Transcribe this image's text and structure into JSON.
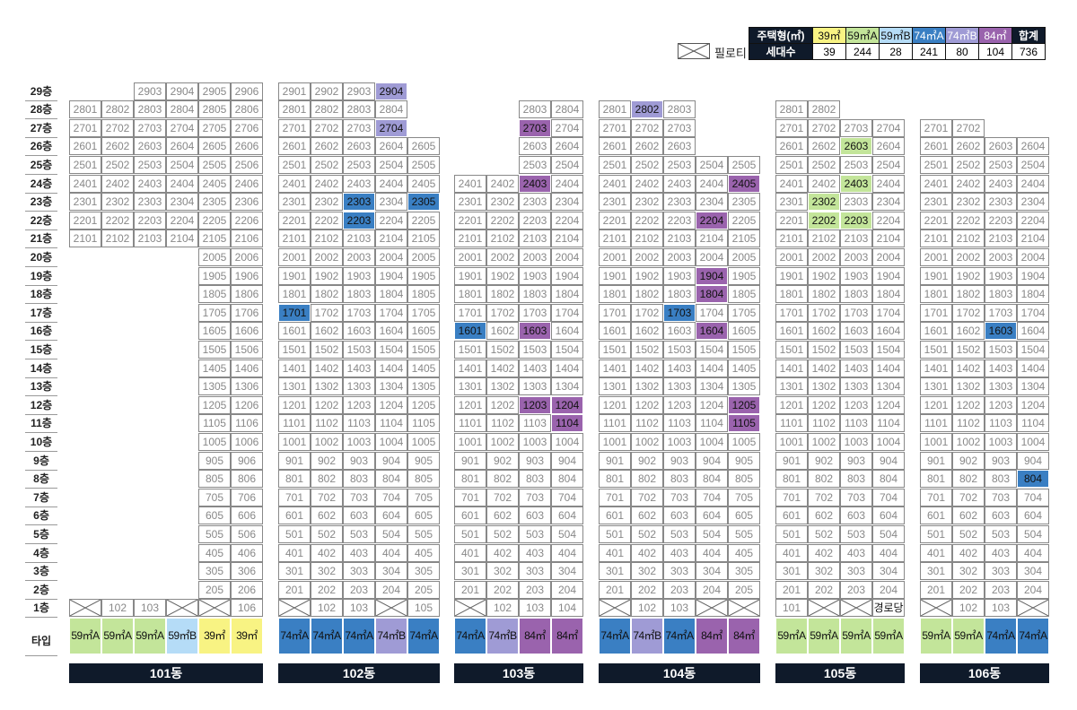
{
  "legend": {
    "header_type": "주택형(㎡)",
    "header_count": "세대수",
    "types": [
      {
        "label": "39㎡",
        "count": "39",
        "color": "#f8f383",
        "dark_text": true
      },
      {
        "label": "59㎡A",
        "count": "244",
        "color": "#c3e59a",
        "dark_text": true
      },
      {
        "label": "59㎡B",
        "count": "28",
        "color": "#b5dcf7",
        "dark_text": true
      },
      {
        "label": "74㎡A",
        "count": "241",
        "color": "#3a7fc3",
        "dark_text": false
      },
      {
        "label": "74㎡B",
        "count": "80",
        "color": "#9f9bd5",
        "dark_text": false
      },
      {
        "label": "84㎡",
        "count": "104",
        "color": "#9a63ad",
        "dark_text": false
      }
    ],
    "total_label": "합계",
    "total_count": "736",
    "piloti_label": "필로티"
  },
  "floor_labels": [
    "29층",
    "28층",
    "27층",
    "26층",
    "25층",
    "24층",
    "23층",
    "22층",
    "21층",
    "20층",
    "19층",
    "18층",
    "17층",
    "16층",
    "15층",
    "14층",
    "13층",
    "12층",
    "11층",
    "10층",
    "9층",
    "8층",
    "7층",
    "6층",
    "5층",
    "4층",
    "3층",
    "2층",
    "1층"
  ],
  "type_row_label": "타입",
  "buildings": [
    {
      "name": "101동",
      "col_count": 6,
      "floor_ranges": [
        [
          3,
          29,
          29
        ],
        [
          1,
          28,
          21
        ],
        [
          5,
          20,
          2
        ]
      ],
      "ground_floor": [
        "P",
        "102",
        "103",
        "P",
        "P",
        "106"
      ],
      "highlights": {},
      "unit_types": [
        "59㎡A",
        "59㎡A",
        "59㎡A",
        "59㎡B",
        "39㎡",
        "39㎡"
      ]
    },
    {
      "name": "102동",
      "col_count": 5,
      "floor_ranges": [
        [
          1,
          29,
          2
        ]
      ],
      "skip": [
        "2905",
        "2805",
        "2705"
      ],
      "ground_floor": [
        "P",
        "102",
        "103",
        "P",
        "105"
      ],
      "highlights": {
        "2904": "74㎡B",
        "2704": "74㎡B",
        "2303": "74㎡A",
        "2305": "74㎡A",
        "2203": "74㎡A",
        "1701": "74㎡A"
      },
      "unit_types": [
        "74㎡A",
        "74㎡A",
        "74㎡A",
        "74㎡B",
        "74㎡A"
      ]
    },
    {
      "name": "103동",
      "col_count": 4,
      "floor_ranges": [
        [
          3,
          28,
          25
        ],
        [
          1,
          24,
          2
        ]
      ],
      "ground_floor": [
        "P",
        "102",
        "103",
        "104"
      ],
      "highlights": {
        "2703": "84㎡",
        "2403": "84㎡",
        "1601": "74㎡A",
        "1603": "84㎡",
        "1203": "84㎡",
        "1204": "84㎡",
        "1104": "84㎡"
      },
      "unit_types": [
        "74㎡A",
        "74㎡B",
        "84㎡",
        "84㎡"
      ]
    },
    {
      "name": "104동",
      "col_count": 5,
      "floor_ranges": [
        [
          1,
          28,
          26
        ],
        [
          1,
          25,
          2
        ]
      ],
      "skip": [
        "2804",
        "2805",
        "2704",
        "2705",
        "2604",
        "2605"
      ],
      "ground_floor": [
        "P",
        "102",
        "103",
        "P",
        "P"
      ],
      "highlights": {
        "2802": "74㎡B",
        "2405": "84㎡",
        "2204": "84㎡",
        "1904": "84㎡",
        "1804": "84㎡",
        "1703": "74㎡A",
        "1604": "84㎡",
        "1205": "84㎡",
        "1105": "84㎡"
      },
      "unit_types": [
        "74㎡A",
        "74㎡B",
        "74㎡A",
        "84㎡",
        "84㎡"
      ]
    },
    {
      "name": "105동",
      "col_count": 4,
      "floor_ranges": [
        [
          1,
          28,
          28
        ],
        [
          1,
          27,
          2
        ]
      ],
      "skip": [
        "2803",
        "2804"
      ],
      "ground_floor": [
        "101",
        "P",
        "P",
        "경로당"
      ],
      "highlights": {
        "2603": "59㎡A",
        "2403": "59㎡A",
        "2302": "59㎡A",
        "2202": "59㎡A",
        "2203": "59㎡A"
      },
      "unit_types": [
        "59㎡A",
        "59㎡A",
        "59㎡A",
        "59㎡A"
      ]
    },
    {
      "name": "106동",
      "col_count": 4,
      "floor_ranges": [
        [
          1,
          27,
          27
        ],
        [
          1,
          26,
          2
        ]
      ],
      "skip": [
        "2703",
        "2704"
      ],
      "ground_floor": [
        "P",
        "102",
        "103",
        "P"
      ],
      "highlights": {
        "1603": "74㎡A",
        "804": "74㎡A"
      },
      "unit_types": [
        "59㎡A",
        "59㎡A",
        "74㎡A",
        "74㎡A"
      ]
    }
  ]
}
